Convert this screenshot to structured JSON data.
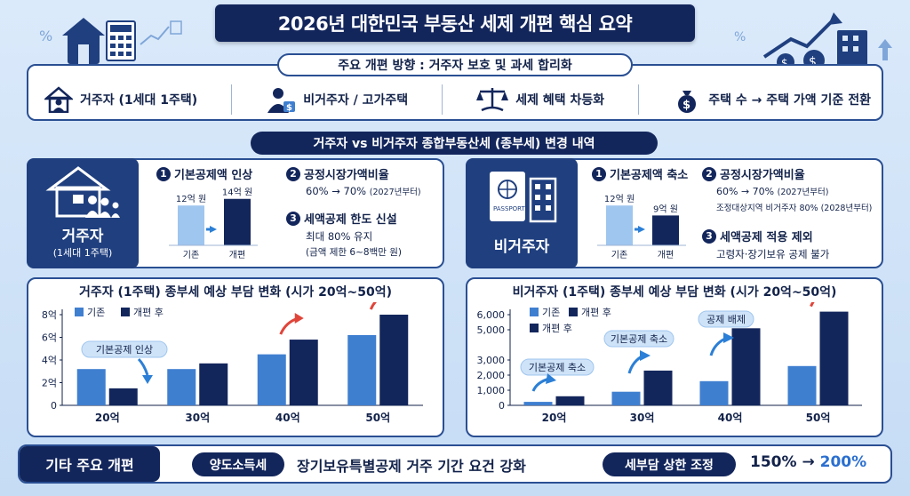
{
  "title": "2026년 대한민국 부동산 세제 개편 핵심 요약",
  "direction": {
    "label": "주요 개편 방향 : 거주자 보호 및 과세 합리화",
    "items": [
      {
        "icon": "house-person-icon",
        "label": "거주자 (1세대 1주택)"
      },
      {
        "icon": "person-money-icon",
        "label": "비거주자 / 고가주택"
      },
      {
        "icon": "scales-icon",
        "label": "세제 혜택 차등화"
      },
      {
        "icon": "money-bag-icon",
        "label": "주택 수 → 주택 가액 기준 전환"
      }
    ]
  },
  "section_title": "거주자 vs 비거주자 종합부동산세 (종부세) 변경 내역",
  "resident": {
    "label": "거주자",
    "sublabel": "(1세대 1주택)",
    "item1_num": "1",
    "item1_title": "기본공제액 인상",
    "mini_bar_before": "12억 원",
    "mini_bar_after": "14억 원",
    "mini_cat_before": "기존",
    "mini_cat_after": "개편",
    "mini_values": [
      12,
      14
    ],
    "item2_num": "2",
    "item2_title": "공정시장가액비율",
    "item2_line1": "60% → 70%",
    "item2_line1_note": "(2027년부터)",
    "item3_num": "3",
    "item3_title": "세액공제 한도 신설",
    "item3_line1": "최대 80% 유지",
    "item3_line2": "(금액 제한 6~8백만 원)"
  },
  "nonresident": {
    "label": "비거주자",
    "item1_num": "1",
    "item1_title": "기본공제액 축소",
    "mini_bar_before": "12억 원",
    "mini_bar_after": "9억 원",
    "mini_cat_before": "기존",
    "mini_cat_after": "개편",
    "mini_values": [
      12,
      9
    ],
    "item2_num": "2",
    "item2_title": "공정시장가액비율",
    "item2_line1": "60% → 70%",
    "item2_line1_note": "(2027년부터)",
    "item2_line2": "조정대상지역 비거주자 80% (2028년부터)",
    "item3_num": "3",
    "item3_title": "세액공제 적용 제외",
    "item3_line1": "고령자·장기보유 공제 불가"
  },
  "chart_data": [
    {
      "type": "bar",
      "title": "거주자 (1주택) 종부세 예상 부담 변화 (시가 20억~50억)",
      "categories": [
        "20억",
        "30억",
        "40억",
        "50억"
      ],
      "series": [
        {
          "name": "기존",
          "values": [
            3.2,
            3.2,
            4.5,
            6.2
          ],
          "color": "#3f7fd0"
        },
        {
          "name": "개편 후",
          "values": [
            1.5,
            3.7,
            5.8,
            8.0
          ],
          "color": "#13265c"
        }
      ],
      "ylim": [
        0,
        8
      ],
      "yticks": [
        "0",
        "2억",
        "4억",
        "6억",
        "8억"
      ],
      "annotations": [
        "기본공제 인상"
      ]
    },
    {
      "type": "bar",
      "title": "비거주자 (1주택) 종부세 예상 부담 변화 (시가 20억~50억)",
      "categories": [
        "20억",
        "30억",
        "40억",
        "50억"
      ],
      "series": [
        {
          "name": "기존",
          "values": [
            230,
            900,
            1600,
            2600
          ],
          "color": "#3f7fd0"
        },
        {
          "name": "개편 후",
          "values": [
            600,
            2300,
            5100,
            6200
          ],
          "color": "#13265c"
        }
      ],
      "ylim": [
        0,
        6000
      ],
      "yticks": [
        "0",
        "1,000",
        "2,000",
        "3,000",
        "5,000",
        "6,000"
      ],
      "legend_extra": "개편 후",
      "annotations": [
        "기본공제 축소",
        "기본공제 축소",
        "공제 배제"
      ]
    }
  ],
  "other": {
    "label": "기타 주요 개편",
    "tag1": "양도소득세",
    "text1": "장기보유특별공제 거주 기간 요건 강화",
    "tag2": "세부담 상한 조정",
    "text2_before": "150% → ",
    "text2_after": "200%"
  },
  "colors": {
    "navy": "#13265c",
    "blue": "#3f7fd0",
    "light_blue": "#9fc6ef",
    "accent_red": "#e0453a",
    "accent_blue": "#2b7fd6"
  }
}
